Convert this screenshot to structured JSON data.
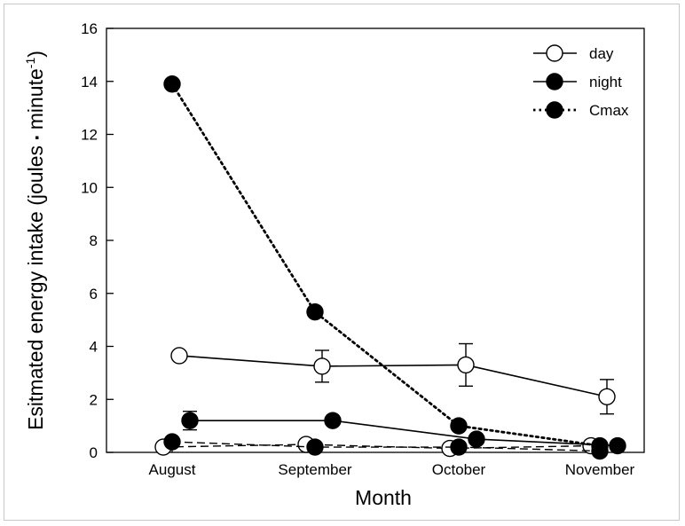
{
  "chart_data": {
    "type": "line",
    "xlabel": "Month",
    "ylabel_parts": [
      "Esitmated energy intake (joules ",
      "▪",
      " minute",
      "-1",
      ")"
    ],
    "categories": [
      "August",
      "September",
      "October",
      "November"
    ],
    "ylim": [
      0,
      16
    ],
    "yticks": [
      "0",
      "2",
      "4",
      "6",
      "8",
      "10",
      "12",
      "14",
      "16"
    ],
    "legend_position": "top-right",
    "grid": false,
    "series": [
      {
        "name": "day",
        "marker": "open",
        "line": "solid",
        "x_offset": 0.08,
        "values": [
          3.65,
          3.25,
          3.3,
          2.1
        ],
        "err": [
          0,
          0.6,
          0.8,
          0.65
        ]
      },
      {
        "name": "night",
        "marker": "filled",
        "line": "solid",
        "x_offset": 0.2,
        "values": [
          1.2,
          1.2,
          0.5,
          0.25
        ],
        "err": [
          0.35,
          0.15,
          0.1,
          0.05
        ]
      },
      {
        "name": "Cmax",
        "marker": "filled",
        "line": "dotted",
        "x_offset": 0.0,
        "values": [
          13.9,
          5.3,
          1.0,
          0.25
        ],
        "err": [
          0,
          0,
          0,
          0
        ]
      },
      {
        "marker": "open",
        "line": "dashed",
        "x_offset": -0.1,
        "values": [
          0.2,
          0.3,
          0.15,
          0.25
        ],
        "err": [
          0,
          0,
          0,
          0
        ]
      },
      {
        "marker": "filled",
        "line": "dashed",
        "x_offset": 0.0,
        "values": [
          0.4,
          0.2,
          0.2,
          0.05
        ],
        "err": [
          0,
          0,
          0,
          0
        ]
      }
    ]
  }
}
